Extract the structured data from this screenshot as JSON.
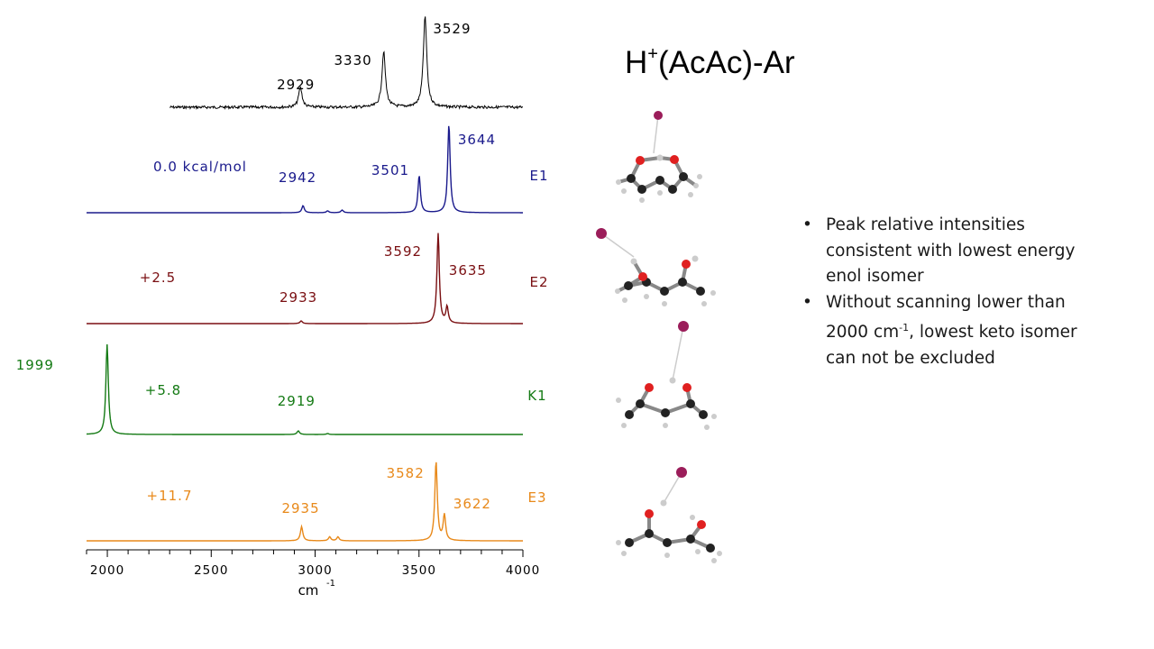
{
  "title": {
    "main": "H",
    "sup": "+",
    "rest": "(AcAc)-Ar"
  },
  "bullets": [
    {
      "text": "Peak relative intensities consistent with lowest energy enol isomer"
    },
    {
      "pre": "Without scanning lower than 2000 cm",
      "sup": "-1",
      "post": ", lowest keto isomer can not be excluded"
    }
  ],
  "chart_data": {
    "type": "line",
    "xlabel": "cm",
    "xlabel_sup": "-1",
    "xlim": [
      1900,
      4000
    ],
    "xticks": [
      "2000",
      "2500",
      "3000",
      "3500",
      "4000"
    ],
    "series": [
      {
        "name": "",
        "energy": "",
        "color": "#000000",
        "peaks": [
          {
            "x": 2929,
            "h": 0.22,
            "label": "2929"
          },
          {
            "x": 3330,
            "h": 0.62,
            "label": "3330"
          },
          {
            "x": 3529,
            "h": 1.0,
            "label": "3529"
          }
        ],
        "x_start": 2300,
        "noise": true
      },
      {
        "name": "E1",
        "energy": "0.0 kcal/mol",
        "color": "#1a1a8c",
        "peaks": [
          {
            "x": 2942,
            "h": 0.08,
            "label": "2942"
          },
          {
            "x": 3501,
            "h": 0.42,
            "label": "3501"
          },
          {
            "x": 3644,
            "h": 1.0,
            "label": "3644"
          }
        ],
        "minor": [
          {
            "x": 3060,
            "h": 0.02
          },
          {
            "x": 3130,
            "h": 0.03
          }
        ],
        "x_start": 1900
      },
      {
        "name": "E2",
        "energy": "+2.5",
        "color": "#7a0f12",
        "peaks": [
          {
            "x": 2933,
            "h": 0.03,
            "label": "2933"
          },
          {
            "x": 3592,
            "h": 1.0,
            "label": "3592"
          },
          {
            "x": 3635,
            "h": 0.18,
            "label": "3635"
          }
        ],
        "x_start": 1900
      },
      {
        "name": "K1",
        "energy": "+5.8",
        "color": "#147a14",
        "peaks": [
          {
            "x": 1999,
            "h": 1.0,
            "label": "1999"
          },
          {
            "x": 2919,
            "h": 0.04,
            "label": "2919"
          }
        ],
        "minor": [
          {
            "x": 3060,
            "h": 0.01
          }
        ],
        "x_start": 1900
      },
      {
        "name": "E3",
        "energy": "+11.7",
        "color": "#e8891a",
        "peaks": [
          {
            "x": 2935,
            "h": 0.18,
            "label": "2935"
          },
          {
            "x": 3582,
            "h": 1.0,
            "label": "3582"
          },
          {
            "x": 3622,
            "h": 0.32,
            "label": "3622"
          }
        ],
        "minor": [
          {
            "x": 3070,
            "h": 0.05
          },
          {
            "x": 3110,
            "h": 0.05
          }
        ],
        "x_start": 1900
      }
    ]
  },
  "molecules": [
    {
      "type": "E1"
    },
    {
      "type": "E2"
    },
    {
      "type": "K1"
    },
    {
      "type": "E3"
    }
  ]
}
